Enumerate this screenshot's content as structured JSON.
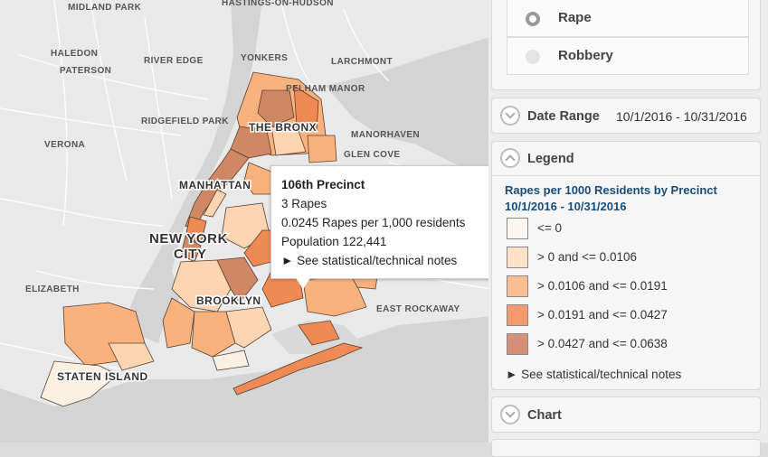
{
  "map": {
    "place_labels": [
      {
        "text": "MIDLAND PARK"
      },
      {
        "text": "HASTINGS-ON-HUDSON"
      },
      {
        "text": "RIVER EDGE"
      },
      {
        "text": "HALEDON"
      },
      {
        "text": "PATERSON"
      },
      {
        "text": "YONKERS"
      },
      {
        "text": "LARCHMONT"
      },
      {
        "text": "RIDGEFIELD PARK"
      },
      {
        "text": "VERONA"
      },
      {
        "text": "PELHAM MANOR"
      },
      {
        "text": "MANORHAVEN"
      },
      {
        "text": "GLEN COVE"
      },
      {
        "text": "ELIZABETH"
      },
      {
        "text": "EAST ROCKAWAY"
      }
    ],
    "borough_labels": {
      "bronx": "THE BRONX",
      "manhattan": "MANHATTAN",
      "brooklyn": "BROOKLYN",
      "staten_island": "STATEN ISLAND",
      "city_line1": "NEW YORK",
      "city_line2": "CITY"
    },
    "colors": {
      "land": "#e9e9e9",
      "water": "#d4d4d4",
      "road": "#ffffff",
      "outline": "#5a4030",
      "class0": "#fcefe4",
      "class1": "#fdd5b3",
      "class2": "#f9b27e",
      "class3": "#ef8a55",
      "class4": "#cf8866"
    }
  },
  "tooltip": {
    "title": "106th Precinct",
    "count": "3 Rapes",
    "rate": "0.0245 Rapes per 1,000 residents",
    "population": "Population 122,441",
    "notes_link": "► See statistical/technical notes"
  },
  "panel": {
    "options": [
      {
        "label": "Rape",
        "selected": true
      },
      {
        "label": "Robbery",
        "selected": false
      }
    ],
    "date_range": {
      "label": "Date Range",
      "value": "10/1/2016 - 10/31/2016"
    },
    "legend": {
      "header": "Legend",
      "title_line1": "Rapes per 1000 Residents by Precinct",
      "title_line2": "10/1/2016 - 10/31/2016",
      "items": [
        {
          "label": "<= 0",
          "color": "#fcf6f0"
        },
        {
          "label": "> 0 and <= 0.0106",
          "color": "#fde0c8"
        },
        {
          "label": "> 0.0106 and <= 0.0191",
          "color": "#fbbd92"
        },
        {
          "label": "> 0.0191 and <= 0.0427",
          "color": "#f59a6c"
        },
        {
          "label": "> 0.0427 and <= 0.0638",
          "color": "#d49078"
        }
      ],
      "notes_link": "► See statistical/technical notes"
    },
    "chart": {
      "label": "Chart"
    }
  }
}
